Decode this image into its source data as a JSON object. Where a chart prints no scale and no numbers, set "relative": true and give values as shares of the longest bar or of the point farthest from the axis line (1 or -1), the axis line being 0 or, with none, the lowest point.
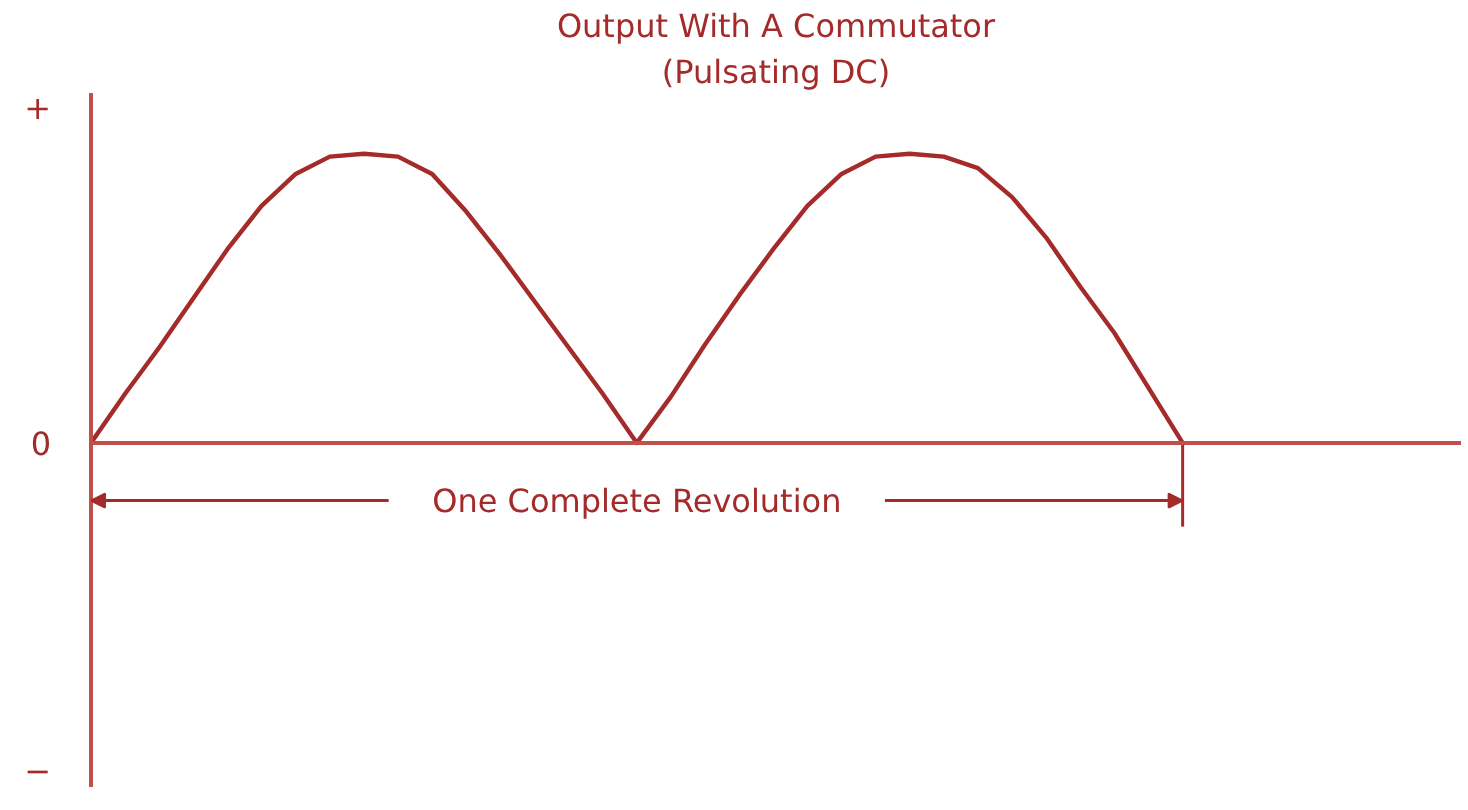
{
  "chart_data": {
    "type": "line",
    "title": "Output With A Commutator",
    "subtitle": "(Pulsating DC)",
    "categories": [
      null,
      null,
      null,
      null,
      null,
      null,
      null,
      null,
      null,
      null,
      null,
      null,
      null,
      null,
      null,
      null,
      null,
      null,
      null,
      null,
      null,
      null,
      null,
      null,
      null,
      null,
      null,
      null,
      null,
      null,
      null,
      null,
      null
    ],
    "relative": true,
    "series": [
      {
        "color": "#a52a2a",
        "values": [
          0,
          0.17,
          0.33,
          0.5,
          0.67,
          0.82,
          0.93,
          0.99,
          1.0,
          0.99,
          0.93,
          0.8,
          0.65,
          0.49,
          0.33,
          0.17,
          0,
          0.16,
          0.34,
          0.51,
          0.67,
          0.82,
          0.93,
          0.99,
          1.0,
          0.99,
          0.95,
          0.85,
          0.71,
          0.54,
          0.38,
          0.19,
          0
        ]
      }
    ],
    "annotations": [
      "+",
      "0",
      "−",
      "One Complete Revolution"
    ]
  }
}
